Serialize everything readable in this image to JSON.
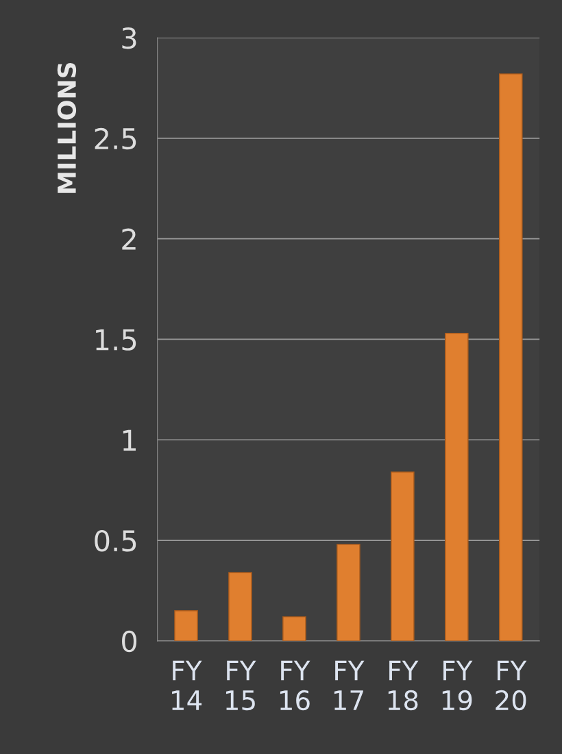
{
  "chart_data": {
    "type": "bar",
    "ylabel": "MILLIONS",
    "categories": [
      "FY\n14",
      "FY\n15",
      "FY\n16",
      "FY\n17",
      "FY\n18",
      "FY\n19",
      "FY\n20"
    ],
    "values": [
      0.15,
      0.34,
      0.12,
      0.48,
      0.84,
      1.53,
      2.82
    ],
    "color": "#e07f2f",
    "ylim": [
      0,
      3
    ],
    "yticks": [
      0,
      0.5,
      1,
      1.5,
      2,
      2.5,
      3
    ],
    "grid": "y"
  }
}
